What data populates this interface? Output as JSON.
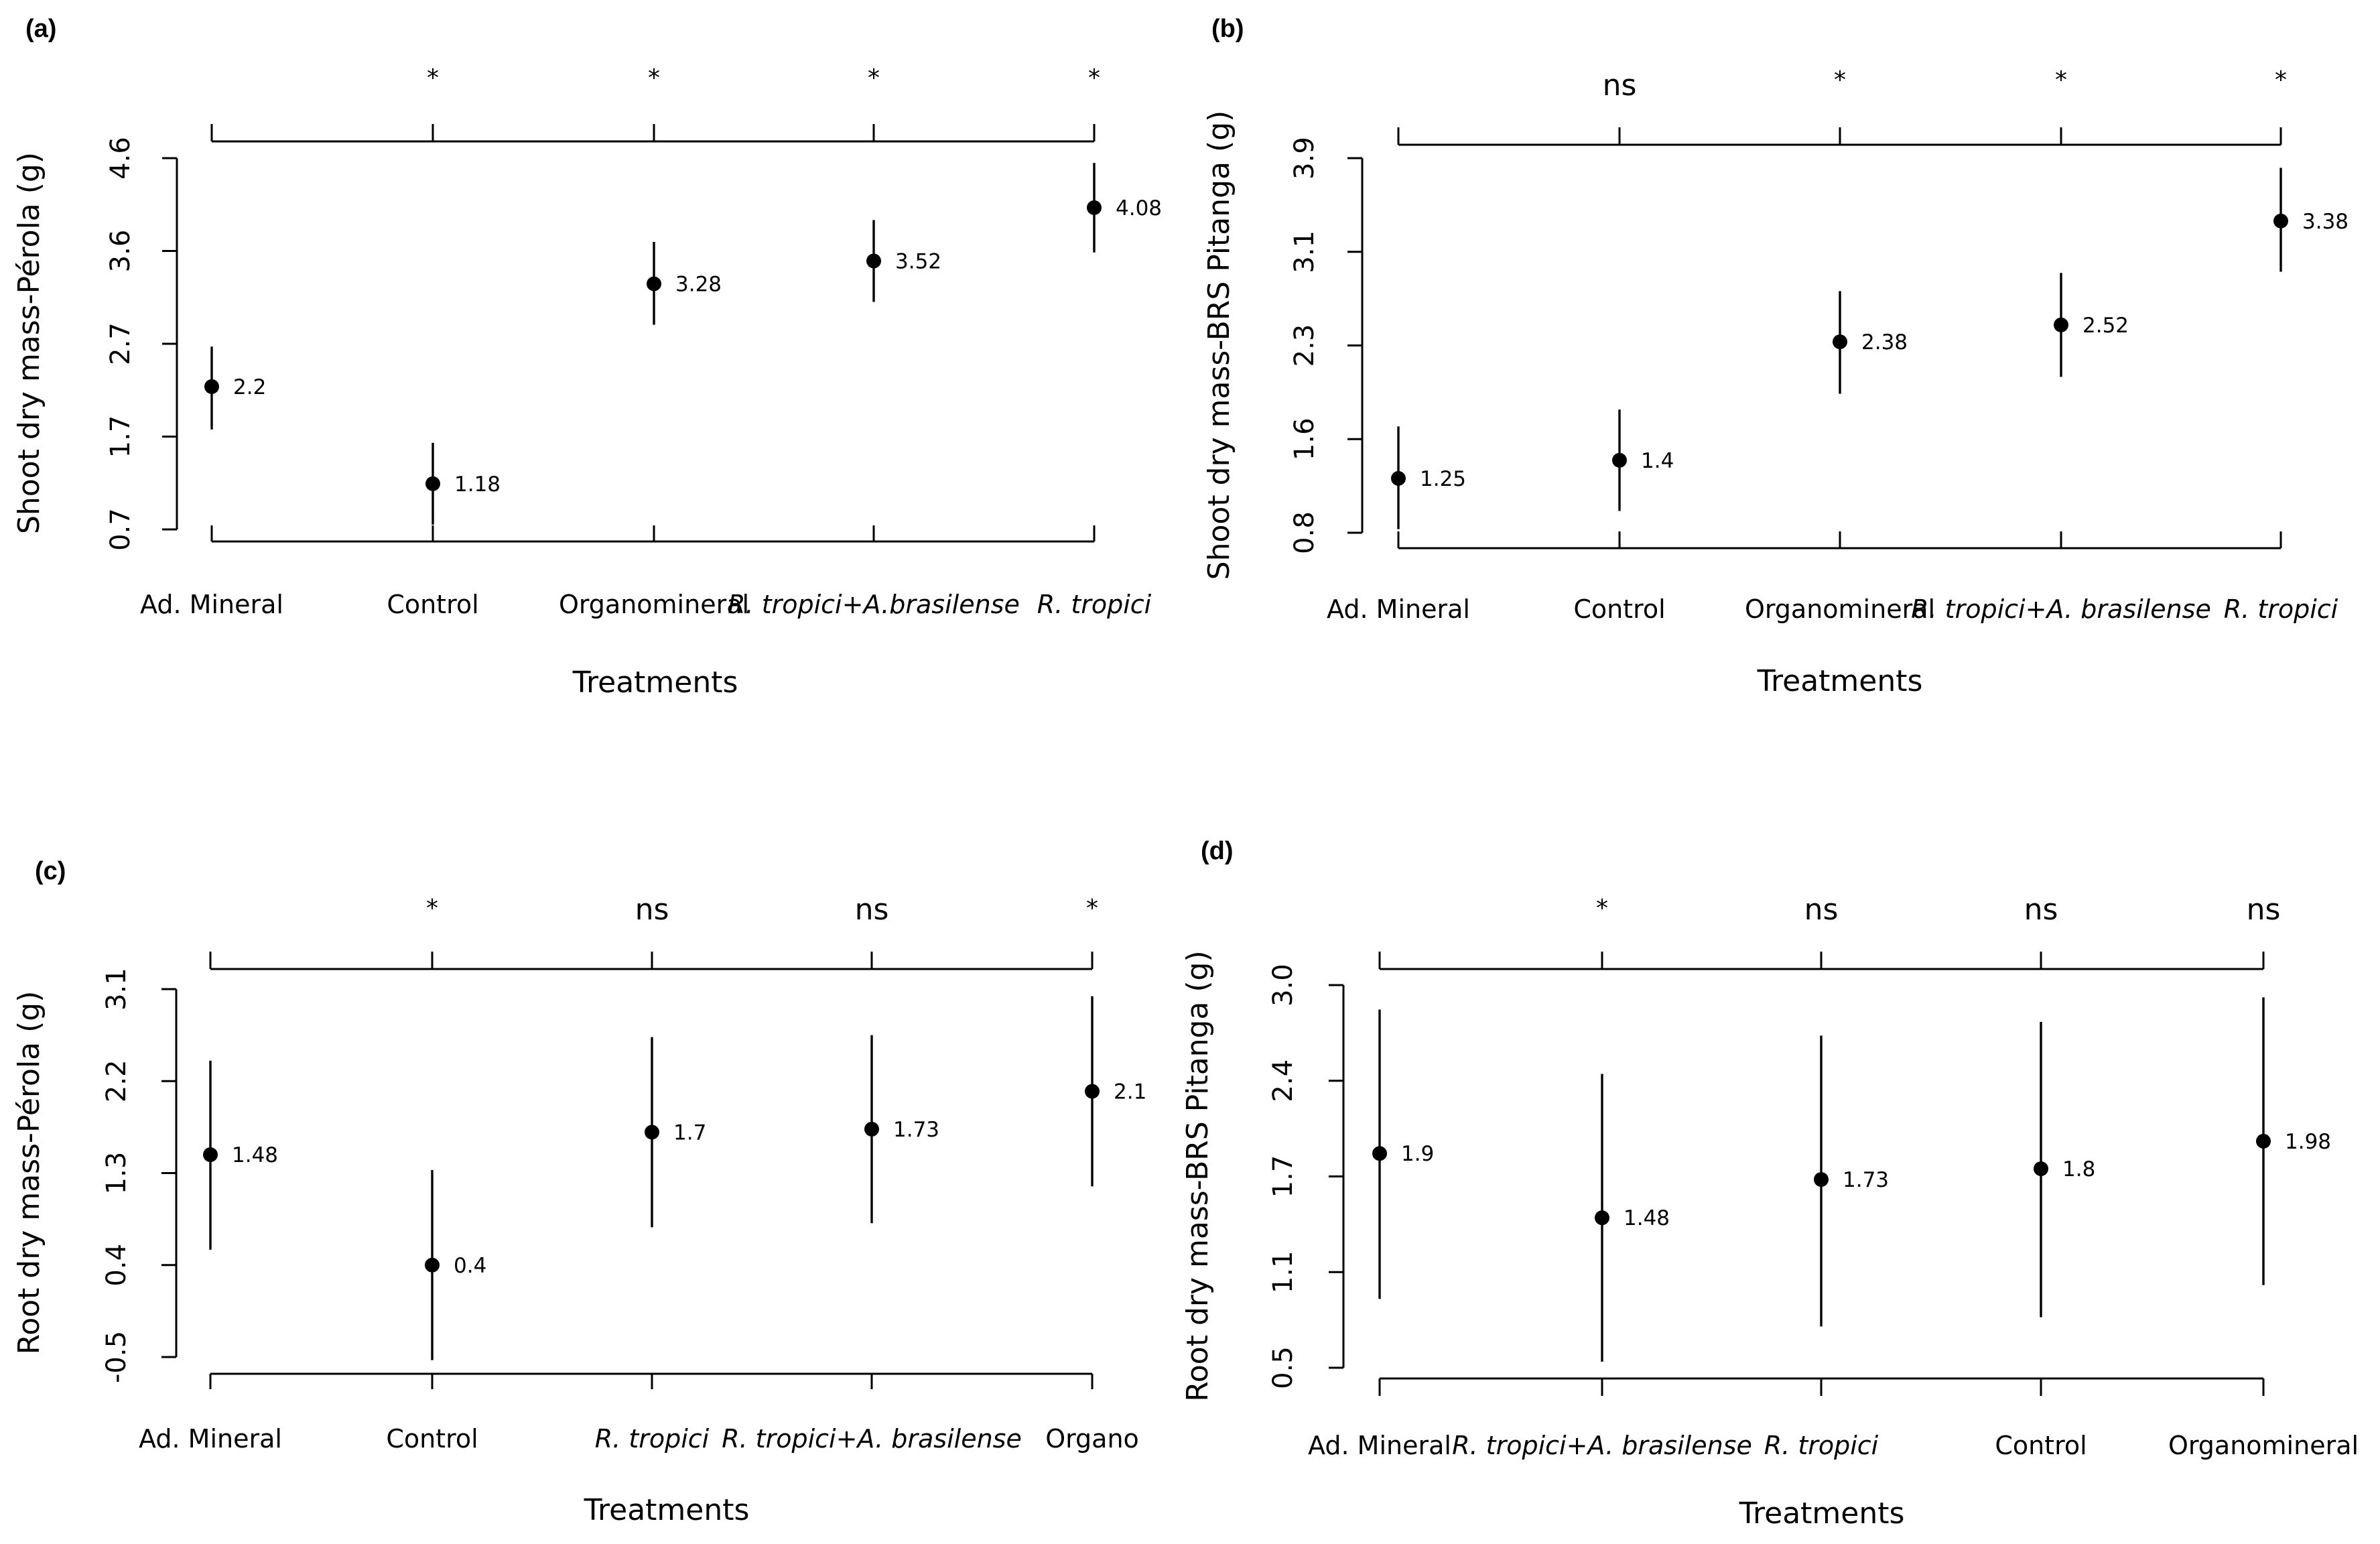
{
  "chart_data": [
    {
      "type": "scatter",
      "panel_label": "(a)",
      "ylabel": "Shoot dry mass-Pérola (g)",
      "xlabel": "Treatments",
      "ylim": [
        0.7,
        4.6
      ],
      "yticks": [
        "0.7",
        "1.7",
        "2.7",
        "3.6",
        "4.6"
      ],
      "categories": [
        {
          "text": "Ad. Mineral",
          "parts": [
            {
              "t": "Ad. Mineral",
              "i": false
            }
          ]
        },
        {
          "text": "Control",
          "parts": [
            {
              "t": "Control",
              "i": false
            }
          ]
        },
        {
          "text": "Organomineral",
          "parts": [
            {
              "t": "Organomineral",
              "i": false
            }
          ]
        },
        {
          "text": "R. tropici+A.brasilense",
          "parts": [
            {
              "t": "R. tropici",
              "i": true
            },
            {
              "t": "+",
              "i": false
            },
            {
              "t": "A.brasilense",
              "i": true
            }
          ]
        },
        {
          "text": "R. tropici",
          "parts": [
            {
              "t": "R. tropici",
              "i": true
            }
          ]
        }
      ],
      "values": [
        2.2,
        1.18,
        3.28,
        3.52,
        4.08
      ],
      "value_labels": [
        "2.2",
        "1.18",
        "3.28",
        "3.52",
        "4.08"
      ],
      "lower": [
        1.75,
        0.75,
        2.85,
        3.09,
        3.61
      ],
      "upper": [
        2.62,
        1.61,
        3.72,
        3.95,
        4.55
      ],
      "significance": [
        "",
        "*",
        "*",
        "*",
        "*"
      ]
    },
    {
      "type": "scatter",
      "panel_label": "(b)",
      "ylabel": "Shoot dry mass-BRS Pitanga (g)",
      "xlabel": "Treatments",
      "ylim": [
        0.8,
        3.9
      ],
      "yticks": [
        "0.8",
        "1.6",
        "2.3",
        "3.1",
        "3.9"
      ],
      "categories": [
        {
          "text": "Ad. Mineral",
          "parts": [
            {
              "t": "Ad. Mineral",
              "i": false
            }
          ]
        },
        {
          "text": "Control",
          "parts": [
            {
              "t": "Control",
              "i": false
            }
          ]
        },
        {
          "text": "Organomineral",
          "parts": [
            {
              "t": "Organomineral",
              "i": false
            }
          ]
        },
        {
          "text": "R. tropici+A. brasilense",
          "parts": [
            {
              "t": "R. tropici",
              "i": true
            },
            {
              "t": "+",
              "i": false
            },
            {
              "t": "A. brasilense",
              "i": true
            }
          ]
        },
        {
          "text": "R. tropici",
          "parts": [
            {
              "t": "R. tropici",
              "i": true
            }
          ]
        }
      ],
      "values": [
        1.25,
        1.4,
        2.38,
        2.52,
        3.38
      ],
      "value_labels": [
        "1.25",
        "1.4",
        "2.38",
        "2.52",
        "3.38"
      ],
      "lower": [
        0.83,
        0.98,
        1.95,
        2.09,
        2.96
      ],
      "upper": [
        1.68,
        1.82,
        2.8,
        2.95,
        3.82
      ],
      "significance": [
        "",
        "ns",
        "*",
        "*",
        "*"
      ]
    },
    {
      "type": "scatter",
      "panel_label": "(c)",
      "ylabel": "Root dry mass-Pérola (g)",
      "xlabel": "Treatments",
      "ylim": [
        -0.5,
        3.1
      ],
      "yticks": [
        "-0.5",
        "0.4",
        "1.3",
        "2.2",
        "3.1"
      ],
      "categories": [
        {
          "text": "Ad. Mineral",
          "parts": [
            {
              "t": "Ad. Mineral",
              "i": false
            }
          ]
        },
        {
          "text": "Control",
          "parts": [
            {
              "t": "Control",
              "i": false
            }
          ]
        },
        {
          "text": "R. tropici",
          "parts": [
            {
              "t": "R. tropici",
              "i": true
            }
          ]
        },
        {
          "text": "R. tropici+A. brasilense",
          "parts": [
            {
              "t": "R. tropici",
              "i": true
            },
            {
              "t": "+",
              "i": false
            },
            {
              "t": "A. brasilense",
              "i": true
            }
          ]
        },
        {
          "text": "Organo",
          "parts": [
            {
              "t": "Organo",
              "i": false
            }
          ]
        }
      ],
      "values": [
        1.48,
        0.4,
        1.7,
        1.73,
        2.1
      ],
      "value_labels": [
        "1.48",
        "0.4",
        "1.7",
        "1.73",
        "2.1"
      ],
      "lower": [
        0.55,
        -0.53,
        0.77,
        0.81,
        1.17
      ],
      "upper": [
        2.4,
        1.33,
        2.63,
        2.65,
        3.03
      ],
      "significance": [
        "",
        "*",
        "ns",
        "ns",
        "*"
      ]
    },
    {
      "type": "scatter",
      "panel_label": "(d)",
      "ylabel": "Root dry mass-BRS Pitanga (g)",
      "xlabel": "Treatments",
      "ylim": [
        0.5,
        3.0
      ],
      "yticks": [
        "0.5",
        "1.1",
        "1.7",
        "2.4",
        "3.0"
      ],
      "categories": [
        {
          "text": "Ad. Mineral",
          "parts": [
            {
              "t": "Ad. Mineral",
              "i": false
            }
          ]
        },
        {
          "text": "R. tropici+A. brasilense",
          "parts": [
            {
              "t": "R. tropici",
              "i": true
            },
            {
              "t": "+",
              "i": false
            },
            {
              "t": "A. brasilense",
              "i": true
            }
          ]
        },
        {
          "text": "R. tropici",
          "parts": [
            {
              "t": "R. tropici",
              "i": true
            }
          ]
        },
        {
          "text": "Control",
          "parts": [
            {
              "t": "Control",
              "i": false
            }
          ]
        },
        {
          "text": "Organomineral",
          "parts": [
            {
              "t": "Organomineral",
              "i": false
            }
          ]
        }
      ],
      "values": [
        1.9,
        1.48,
        1.73,
        1.8,
        1.98
      ],
      "value_labels": [
        "1.9",
        "1.48",
        "1.73",
        "1.8",
        "1.98"
      ],
      "lower": [
        0.95,
        0.54,
        0.77,
        0.83,
        1.04
      ],
      "upper": [
        2.84,
        2.42,
        2.67,
        2.76,
        2.92
      ],
      "significance": [
        "",
        "*",
        "ns",
        "ns",
        "ns"
      ]
    }
  ]
}
